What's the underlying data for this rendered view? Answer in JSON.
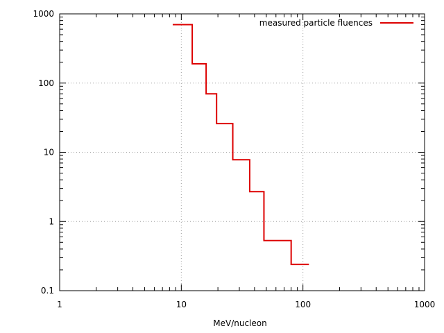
{
  "chart_data": {
    "type": "line",
    "title": "",
    "xlabel": "MeV/nucleon",
    "ylabel": "",
    "xscale": "log",
    "yscale": "log",
    "xlim": [
      1,
      1000
    ],
    "ylim": [
      0.1,
      1000
    ],
    "grid": true,
    "legend_position": "top-right",
    "x_ticks": [
      1,
      10,
      100,
      1000
    ],
    "x_tick_labels": [
      "1",
      "10",
      "100",
      "1000"
    ],
    "y_ticks": [
      0.1,
      1,
      10,
      100,
      1000
    ],
    "y_tick_labels": [
      "0.1",
      "1",
      "10",
      "100",
      "1000"
    ],
    "series": [
      {
        "name": "measured particle fluences",
        "color": "#dd0000",
        "step": "post",
        "x": [
          8.5,
          12.3,
          16.0,
          19.5,
          26.5,
          36.5,
          47.8,
          80.0,
          112.0
        ],
        "y": [
          700,
          190,
          70,
          26,
          7.8,
          2.7,
          0.53,
          0.24,
          0.24
        ]
      }
    ]
  }
}
